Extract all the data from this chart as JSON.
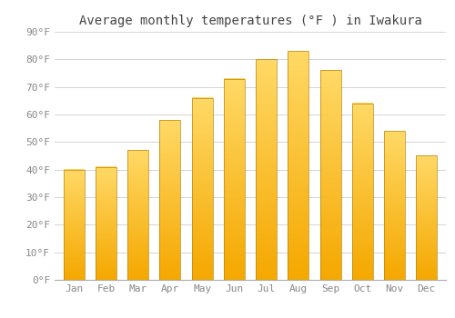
{
  "title": "Average monthly temperatures (°F ) in Iwakura",
  "months": [
    "Jan",
    "Feb",
    "Mar",
    "Apr",
    "May",
    "Jun",
    "Jul",
    "Aug",
    "Sep",
    "Oct",
    "Nov",
    "Dec"
  ],
  "values": [
    40,
    41,
    47,
    58,
    66,
    73,
    80,
    83,
    76,
    64,
    54,
    45
  ],
  "bar_color_bottom": "#F5A800",
  "bar_color_top": "#FFD966",
  "bar_edge_color": "#B8860B",
  "background_color": "#FFFFFF",
  "grid_color": "#CCCCCC",
  "ylim": [
    0,
    90
  ],
  "yticks": [
    0,
    10,
    20,
    30,
    40,
    50,
    60,
    70,
    80,
    90
  ],
  "ytick_labels": [
    "0°F",
    "10°F",
    "20°F",
    "30°F",
    "40°F",
    "50°F",
    "60°F",
    "70°F",
    "80°F",
    "90°F"
  ],
  "tick_font_size": 8,
  "title_font_size": 10
}
